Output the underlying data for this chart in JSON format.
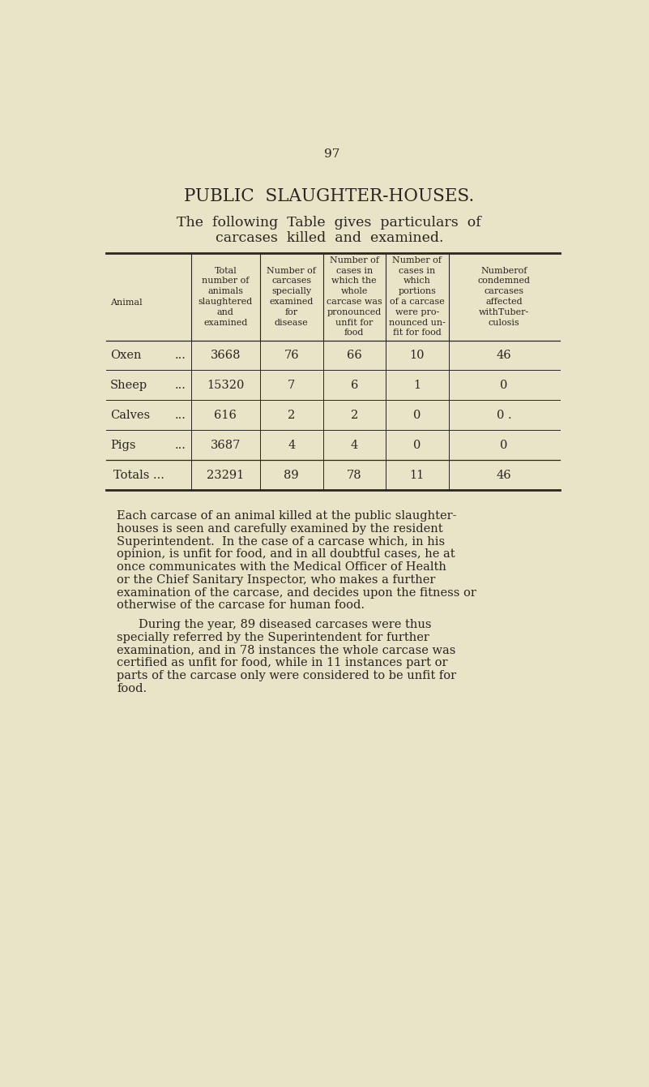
{
  "page_number": "97",
  "title": "PUBLIC  SLAUGHTER-HOUSES.",
  "subtitle_line1": "The  following  Table  gives  particulars  of",
  "subtitle_line2": "carcases  killed  and  examined.",
  "bg_color": "#e8e4c8",
  "text_color": "#2a2520",
  "col_headers": [
    "Animal",
    "Total\nnumber of\nanimals\nslaughtered\nand\nexamined",
    "Number of\ncarcases\nspecially\nexamined\nfor\ndisease",
    "Number of\ncases in\nwhich the\nwhole\ncarcase was\npronounced\nunfit for\nfood",
    "Number of\ncases in\nwhich\nportions\nof a carcase\nwere pro-\nnounced un-\nfit for food",
    "Numberof\ncondemned\ncarcases\naffected\nwithTuber-\nculosis"
  ],
  "rows": [
    [
      "Oxen",
      "...",
      "3668",
      "76",
      "66",
      "10",
      "46"
    ],
    [
      "Sheep",
      "...",
      "15320",
      "7",
      "6",
      "1",
      "0"
    ],
    [
      "Calves",
      "...",
      "616",
      "2",
      "2",
      "0",
      "0 ."
    ],
    [
      "Pigs",
      "...",
      "3687",
      "4",
      "4",
      "0",
      "0"
    ]
  ],
  "totals_label": "Totals ...",
  "totals_data": [
    "23291",
    "89",
    "78",
    "11",
    "46"
  ],
  "body_para1_lines": [
    "Each carcase of an animal killed at the public slaughter-",
    "houses is seen and carefully examined by the resident",
    "Superintendent.  In the case of a carcase which, in his",
    "opinion, is unfit for food, and in all doubtful cases, he at",
    "once communicates with the Medical Officer of Health",
    "or the Chief Sanitary Inspector, who makes a further",
    "examination of the carcase, and decides upon the fitness or",
    "otherwise of the carcase for human food."
  ],
  "body_para2_lines": [
    "During the year, 89 diseased carcases were thus",
    "specially referred by the Superintendent for further",
    "examination, and in 78 instances the whole carcase was",
    "certified as unfit for food, while in 11 instances part or",
    "parts of the carcase only were considered to be unfit for",
    "food."
  ]
}
